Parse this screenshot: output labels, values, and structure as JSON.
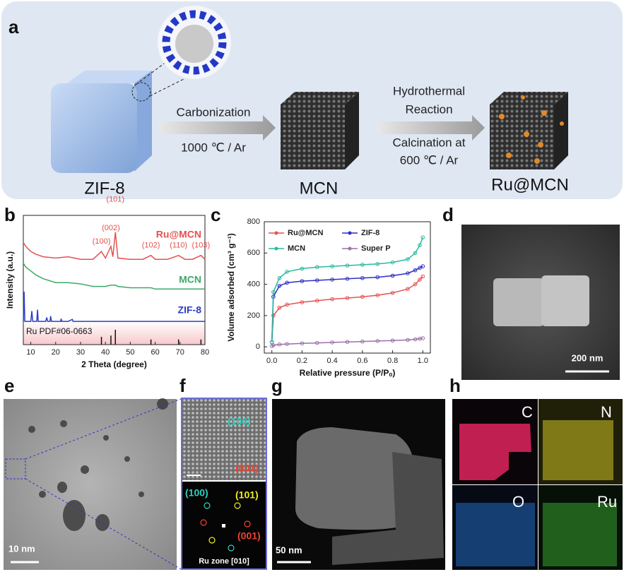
{
  "panel_labels": [
    "a",
    "b",
    "c",
    "d",
    "e",
    "f",
    "g",
    "h"
  ],
  "scheme": {
    "materials": [
      "ZIF-8",
      "MCN",
      "Ru@MCN"
    ],
    "step1": [
      "Carbonization",
      "1000 ℃ / Ar"
    ],
    "step2": [
      "Hydrothermal",
      "Reaction",
      "Calcination at",
      "600 ℃ / Ar"
    ]
  },
  "chart_data": [
    {
      "type": "line",
      "xlabel": "2 Theta (degree)",
      "ylabel": "Intensity (a.u.)",
      "xlim": [
        7,
        80
      ],
      "ylim": [
        0,
        100
      ],
      "xticks": [
        10,
        20,
        30,
        40,
        50,
        60,
        70,
        80
      ],
      "series": [
        {
          "name": "Ru@MCN",
          "color": "#e4524f",
          "x": [
            7,
            8,
            10,
            12,
            15,
            20,
            25,
            30,
            35,
            38.4,
            40,
            42.2,
            43,
            44,
            45,
            50,
            55,
            58.3,
            60,
            65,
            69.4,
            72,
            75,
            78.4,
            80
          ],
          "values": [
            79,
            76,
            72,
            70,
            68,
            67,
            68,
            66,
            66,
            72,
            67,
            76,
            68,
            87,
            67,
            66,
            66,
            69,
            66,
            66,
            69,
            66,
            66,
            69,
            66
          ]
        },
        {
          "name": "MCN",
          "color": "#3ea86a",
          "x": [
            7,
            8,
            10,
            12,
            15,
            20,
            25,
            30,
            35,
            38.4,
            40,
            42.2,
            43,
            44,
            45,
            50,
            55,
            58.3,
            60,
            65,
            69.4,
            72,
            75,
            78.4,
            80
          ],
          "values": [
            63,
            60,
            57,
            54,
            51,
            48,
            48,
            47,
            45,
            45,
            45,
            46,
            46,
            46,
            45,
            44,
            44,
            44,
            43,
            43,
            43,
            43,
            43,
            43,
            43
          ]
        },
        {
          "name": "ZIF-8",
          "color": "#2b3fc4",
          "x": [
            7,
            7.3,
            7.6,
            10,
            10.4,
            10.8,
            12.4,
            12.7,
            13,
            16,
            16.4,
            16.8,
            17.7,
            18,
            18.3,
            22,
            22.2,
            22.5,
            25,
            26.7,
            27,
            30,
            80
          ],
          "values": [
            18,
            41,
            18,
            18,
            26,
            18,
            18,
            27,
            18,
            18,
            21,
            18,
            18,
            22,
            18,
            18,
            20,
            18,
            18,
            19.5,
            18,
            18,
            18
          ]
        }
      ],
      "reference": {
        "name": "Ru PDF#06-0663",
        "color": "#111111",
        "x": [
          38.4,
          42.2,
          44,
          58.3,
          69.4,
          78.4
        ],
        "values": [
          6,
          7,
          11.5,
          4,
          4,
          4
        ],
        "peak_labels": [
          "(100)",
          "(002)",
          "(101)",
          "(102)",
          "(110)",
          "(103)"
        ]
      }
    },
    {
      "type": "line",
      "xlabel": "Relative pressure (P/Pₒ)",
      "ylabel": "Volume adsorbed (cm³ g⁻¹)",
      "xlim": [
        -0.05,
        1.05
      ],
      "ylim": [
        -40,
        800
      ],
      "xticks": [
        {
          "value": 0,
          "label": "0.0"
        },
        {
          "value": 0.2,
          "label": "0.2"
        },
        {
          "value": 0.4,
          "label": "0.4"
        },
        {
          "value": 0.6,
          "label": "0.6"
        },
        {
          "value": 0.8,
          "label": "0.8"
        },
        {
          "value": 1,
          "label": "1.0"
        }
      ],
      "yticks": [
        0,
        200,
        400,
        600,
        800
      ],
      "x": [
        0,
        0.01,
        0.05,
        0.1,
        0.2,
        0.3,
        0.4,
        0.5,
        0.6,
        0.7,
        0.8,
        0.9,
        0.95,
        0.98,
        1
      ],
      "series": [
        {
          "name": "Ru@MCN",
          "color": "#e4524f",
          "values": [
            30,
            200,
            250,
            270,
            285,
            295,
            305,
            312,
            320,
            330,
            345,
            370,
            400,
            430,
            450
          ]
        },
        {
          "name": "ZIF-8",
          "color": "#2b2fc4",
          "values": [
            30,
            320,
            390,
            410,
            420,
            425,
            430,
            435,
            440,
            445,
            455,
            470,
            490,
            505,
            515
          ]
        },
        {
          "name": "MCN",
          "color": "#2bb8a0",
          "values": [
            30,
            350,
            440,
            480,
            500,
            510,
            515,
            520,
            525,
            530,
            540,
            560,
            600,
            650,
            700
          ]
        },
        {
          "name": "Super P",
          "color": "#9a70a8",
          "values": [
            5,
            10,
            15,
            18,
            22,
            25,
            28,
            31,
            34,
            37,
            40,
            44,
            48,
            52,
            55
          ]
        }
      ]
    }
  ],
  "sem": {
    "scale_bar": "200 nm"
  },
  "tem": {
    "scale_bar": "10 nm"
  },
  "hrtem": {
    "planes": [
      "(100)",
      "(001)"
    ],
    "fft_spots": [
      "(100)",
      "(101)",
      "(001)"
    ],
    "zone": "Ru zone [010]"
  },
  "haadf": {
    "scale_bar": "50 nm"
  },
  "eds_maps": [
    "C",
    "N",
    "O",
    "Ru"
  ]
}
